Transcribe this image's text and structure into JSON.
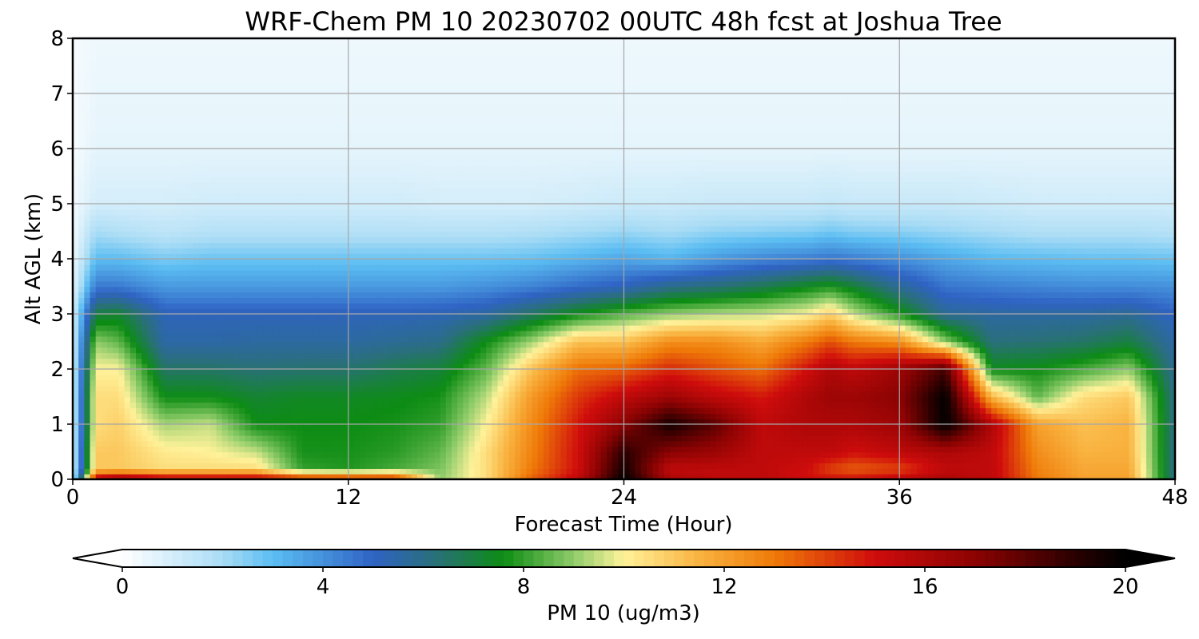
{
  "chart_data": {
    "type": "heatmap",
    "title": "WRF-Chem PM 10  20230702 00UTC 48h fcst at Joshua Tree",
    "xlabel": "Forecast Time (Hour)",
    "ylabel": "Alt AGL (km)",
    "xlim": [
      0,
      48
    ],
    "ylim": [
      0,
      8
    ],
    "x_ticks": [
      "0",
      "12",
      "24",
      "36",
      "48"
    ],
    "y_ticks": [
      "0",
      "1",
      "2",
      "3",
      "4",
      "5",
      "6",
      "7",
      "8"
    ],
    "grid": true,
    "colorbar": {
      "label": "PM 10  (ug/m3)",
      "range": [
        0,
        20
      ],
      "ticks": [
        "0",
        "4",
        "8",
        "12",
        "16",
        "20"
      ],
      "extend": "both",
      "color_stops": [
        {
          "v": 0,
          "c": "#ffffff"
        },
        {
          "v": 2,
          "c": "#a9dcf5"
        },
        {
          "v": 3,
          "c": "#5bbdf2"
        },
        {
          "v": 5,
          "c": "#2f63c4"
        },
        {
          "v": 6.2,
          "c": "#2a6f7c"
        },
        {
          "v": 7.6,
          "c": "#0d8c14"
        },
        {
          "v": 9,
          "c": "#8fcc6a"
        },
        {
          "v": 10,
          "c": "#fff29a"
        },
        {
          "v": 11.5,
          "c": "#f9b340"
        },
        {
          "v": 13,
          "c": "#ef7a08"
        },
        {
          "v": 15,
          "c": "#cf0c0c"
        },
        {
          "v": 17,
          "c": "#8c0303"
        },
        {
          "v": 19,
          "c": "#2a0000"
        },
        {
          "v": 20,
          "c": "#000000"
        }
      ]
    },
    "heights_km": [
      0,
      0.2,
      0.5,
      1,
      1.5,
      2,
      2.5,
      3,
      3.5,
      4,
      4.5,
      5,
      6,
      7,
      8
    ],
    "times_h": [
      0,
      1,
      2,
      4,
      6,
      8,
      10,
      12,
      14,
      16,
      18,
      20,
      22,
      24,
      26,
      28,
      30,
      32,
      33,
      34,
      36,
      38,
      40,
      42,
      44,
      46,
      48
    ],
    "values_ug_m3": [
      [
        1,
        1,
        1,
        1,
        1,
        1,
        1,
        1,
        0.6,
        0.4,
        0.3,
        0.3,
        0.2,
        0.2,
        0.2
      ],
      [
        16,
        11,
        11,
        10.5,
        10.5,
        10,
        9,
        7,
        4.5,
        3,
        2,
        1,
        0.6,
        0.5,
        0.4
      ],
      [
        17,
        11,
        11,
        10.8,
        10.5,
        10,
        8.5,
        7.2,
        4.5,
        3,
        1.8,
        1,
        0.6,
        0.5,
        0.4
      ],
      [
        16,
        10.5,
        10.2,
        9.2,
        7.6,
        6.5,
        5.5,
        5.2,
        3.8,
        2.6,
        1.5,
        1,
        0.6,
        0.5,
        0.4
      ],
      [
        16,
        10.5,
        10,
        9.5,
        7.6,
        6.5,
        5.5,
        5.2,
        3.8,
        2.8,
        1.7,
        1.1,
        0.6,
        0.5,
        0.4
      ],
      [
        16,
        10.5,
        9.5,
        7.6,
        7.2,
        6.3,
        5.6,
        5.2,
        3.8,
        2.8,
        1.7,
        1.1,
        0.6,
        0.5,
        0.4
      ],
      [
        15,
        8,
        7.7,
        7.6,
        7.4,
        6.4,
        5.6,
        5.2,
        3.8,
        2.8,
        1.7,
        1.1,
        0.6,
        0.5,
        0.4
      ],
      [
        15,
        7.8,
        7.7,
        7.6,
        7.4,
        6.4,
        5.6,
        5.2,
        3.8,
        2.8,
        1.7,
        1.1,
        0.6,
        0.5,
        0.4
      ],
      [
        15,
        8.2,
        7.9,
        7.7,
        7.5,
        6.8,
        5.8,
        5.2,
        3.8,
        2.8,
        1.7,
        1.1,
        0.6,
        0.5,
        0.4
      ],
      [
        9,
        8.8,
        8.5,
        8,
        7.7,
        7.1,
        6,
        5.3,
        3.8,
        2.8,
        1.7,
        1,
        0.6,
        0.5,
        0.4
      ],
      [
        10.5,
        10.5,
        10.5,
        10,
        9.4,
        8.5,
        7.6,
        5.6,
        4,
        2.8,
        1.7,
        1,
        0.6,
        0.5,
        0.4
      ],
      [
        13.5,
        13,
        12.8,
        12.6,
        12.2,
        11.2,
        9.2,
        6.6,
        4.3,
        2.9,
        1.8,
        1,
        0.6,
        0.5,
        0.4
      ],
      [
        15.5,
        15,
        15,
        14.8,
        14.2,
        13.2,
        11.2,
        7.6,
        4.8,
        3.2,
        2,
        1.1,
        0.6,
        0.5,
        0.4
      ],
      [
        20,
        19.5,
        19,
        17,
        15.5,
        13.5,
        11.2,
        8.4,
        5.2,
        3.5,
        2.2,
        1.2,
        0.6,
        0.5,
        0.4
      ],
      [
        16,
        15.5,
        17,
        19.5,
        16.5,
        14.5,
        12.5,
        9,
        6,
        3.2,
        2,
        1.2,
        0.6,
        0.5,
        0.4
      ],
      [
        15.5,
        15.5,
        16.5,
        18,
        15.5,
        13.8,
        12.5,
        9.3,
        6.3,
        3.8,
        2.3,
        1.3,
        0.6,
        0.5,
        0.4
      ],
      [
        15.5,
        15.5,
        15.5,
        15.5,
        14.8,
        13.2,
        11.8,
        9.5,
        6.8,
        4.2,
        2.4,
        1.3,
        0.6,
        0.5,
        0.4
      ],
      [
        15,
        15,
        15.5,
        16,
        16,
        15,
        13,
        10,
        7.5,
        4.4,
        2.5,
        1.3,
        0.6,
        0.5,
        0.4
      ],
      [
        15,
        14,
        15.5,
        16,
        16.5,
        16,
        13.8,
        10.8,
        7.8,
        4.6,
        2.7,
        1.4,
        0.6,
        0.5,
        0.4
      ],
      [
        15,
        13.5,
        15,
        16,
        16.5,
        15.5,
        13,
        9.5,
        7.2,
        4.4,
        2.5,
        1.3,
        0.6,
        0.5,
        0.4
      ],
      [
        15.5,
        14,
        15.5,
        16.5,
        17,
        16.5,
        12.5,
        7.8,
        5.8,
        4,
        2.4,
        1.3,
        0.6,
        0.5,
        0.4
      ],
      [
        16,
        15.5,
        16,
        20,
        20,
        18.5,
        9,
        5.8,
        4.6,
        3.5,
        2.2,
        1.3,
        0.6,
        0.5,
        0.4
      ],
      [
        15.5,
        15.5,
        15.5,
        16,
        11.5,
        7.5,
        6.2,
        5.6,
        4.4,
        3.1,
        2,
        1.2,
        0.6,
        0.5,
        0.4
      ],
      [
        13,
        12.8,
        12.5,
        12,
        8.5,
        7.6,
        6.3,
        5.6,
        4.2,
        3,
        1.8,
        1.1,
        0.6,
        0.5,
        0.4
      ],
      [
        12,
        11.8,
        11.5,
        11.2,
        10.5,
        8.2,
        6.5,
        5.6,
        4.1,
        2.9,
        1.8,
        1.1,
        0.6,
        0.5,
        0.4
      ],
      [
        12,
        11.8,
        11.6,
        11.5,
        11,
        9,
        7,
        5.8,
        4.1,
        2.9,
        1.8,
        1.1,
        0.6,
        0.5,
        0.4
      ],
      [
        6,
        6,
        6,
        6,
        6,
        5.8,
        5.5,
        5,
        4,
        2.8,
        1.7,
        1.1,
        0.6,
        0.5,
        0.4
      ]
    ]
  }
}
